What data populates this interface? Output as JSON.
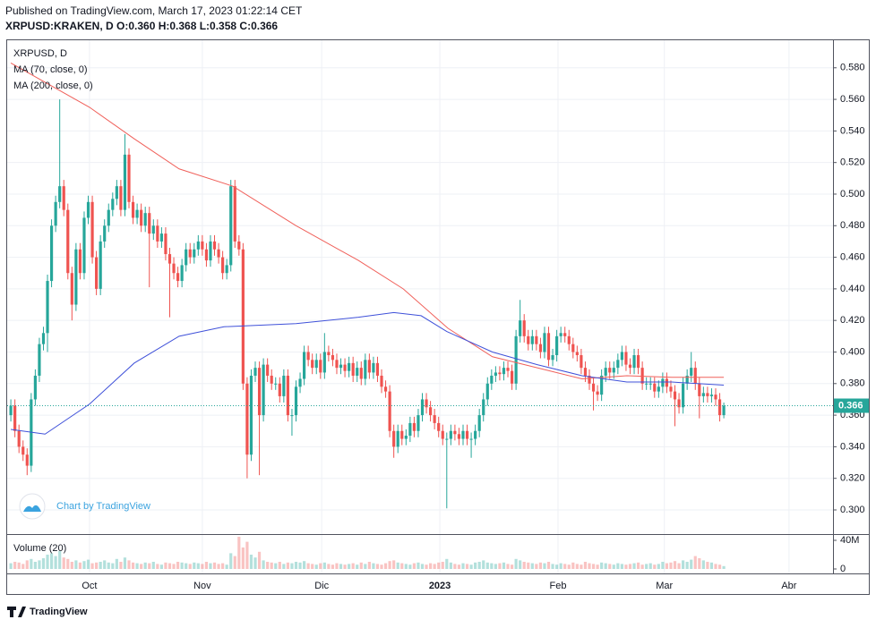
{
  "header": {
    "published": "Published on TradingView.com, March 17, 2023 01:22:14 CET",
    "symbol_line": "XRPUSD:KRAKEN, D O:0.360 H:0.368 L:0.358 C:0.366"
  },
  "chart_data": {
    "type": "candlestick",
    "legend_title": "XRPUSD, D",
    "up_color": "#26a69a",
    "down_color": "#ef5350",
    "grid": true,
    "xlim": [
      -0.9,
      201.8
    ],
    "xticks": [
      {
        "value": 19.3,
        "label": "Oct"
      },
      {
        "value": 47,
        "label": "Nov"
      },
      {
        "value": 76.3,
        "label": "Dic"
      },
      {
        "value": 105.3,
        "label": "2023"
      },
      {
        "value": 134.3,
        "label": "Feb"
      },
      {
        "value": 160.4,
        "label": "Mar"
      },
      {
        "value": 191,
        "label": "Abr"
      }
    ],
    "ylim": [
      0.2847,
      0.598
    ],
    "yticks": [
      {
        "value": 0.3,
        "label": "0.300"
      },
      {
        "value": 0.32,
        "label": "0.320"
      },
      {
        "value": 0.34,
        "label": "0.340"
      },
      {
        "value": 0.36,
        "label": "0.360"
      },
      {
        "value": 0.38,
        "label": "0.380"
      },
      {
        "value": 0.4,
        "label": "0.400"
      },
      {
        "value": 0.42,
        "label": "0.420"
      },
      {
        "value": 0.44,
        "label": "0.440"
      },
      {
        "value": 0.46,
        "label": "0.460"
      },
      {
        "value": 0.48,
        "label": "0.480"
      },
      {
        "value": 0.5,
        "label": "0.500"
      },
      {
        "value": 0.52,
        "label": "0.520"
      },
      {
        "value": 0.54,
        "label": "0.540"
      },
      {
        "value": 0.56,
        "label": "0.560"
      },
      {
        "value": 0.58,
        "label": "0.580"
      }
    ],
    "last_price": 0.366,
    "open": [
      0.36,
      0.366,
      0.35,
      0.34,
      0.335,
      0.328,
      0.37,
      0.385,
      0.405,
      0.412,
      0.445,
      0.48,
      0.495,
      0.505,
      0.49,
      0.45,
      0.43,
      0.465,
      0.45,
      0.485,
      0.495,
      0.46,
      0.44,
      0.47,
      0.48,
      0.49,
      0.497,
      0.505,
      0.49,
      0.525,
      0.495,
      0.485,
      0.49,
      0.48,
      0.488,
      0.475,
      0.48,
      0.47,
      0.475,
      0.462,
      0.456,
      0.45,
      0.445,
      0.455,
      0.465,
      0.46,
      0.465,
      0.47,
      0.465,
      0.458,
      0.47,
      0.465,
      0.46,
      0.45,
      0.455,
      0.505,
      0.47,
      0.465,
      0.38,
      0.335,
      0.385,
      0.39,
      0.36,
      0.392,
      0.385,
      0.38,
      0.38,
      0.372,
      0.385,
      0.36,
      0.36,
      0.378,
      0.383,
      0.4,
      0.395,
      0.39,
      0.395,
      0.387,
      0.4,
      0.398,
      0.395,
      0.39,
      0.392,
      0.388,
      0.393,
      0.385,
      0.39,
      0.383,
      0.395,
      0.387,
      0.393,
      0.385,
      0.378,
      0.375,
      0.35,
      0.34,
      0.35,
      0.345,
      0.347,
      0.355,
      0.35,
      0.36,
      0.37,
      0.365,
      0.36,
      0.355,
      0.35,
      0.345,
      0.345,
      0.35,
      0.348,
      0.345,
      0.35,
      0.345,
      0.345,
      0.35,
      0.36,
      0.37,
      0.38,
      0.385,
      0.387,
      0.386,
      0.39,
      0.388,
      0.38,
      0.41,
      0.42,
      0.41,
      0.405,
      0.41,
      0.405,
      0.4,
      0.412,
      0.395,
      0.398,
      0.41,
      0.412,
      0.41,
      0.405,
      0.4,
      0.398,
      0.39,
      0.385,
      0.38,
      0.375,
      0.373,
      0.385,
      0.39,
      0.387,
      0.39,
      0.395,
      0.4,
      0.392,
      0.39,
      0.398,
      0.39,
      0.38,
      0.38,
      0.38,
      0.375,
      0.378,
      0.383,
      0.378,
      0.375,
      0.37,
      0.365,
      0.38,
      0.385,
      0.39,
      0.38,
      0.372,
      0.374,
      0.372,
      0.373,
      0.37,
      0.36
    ],
    "high": [
      0.37,
      0.37,
      0.354,
      0.344,
      0.339,
      0.374,
      0.389,
      0.409,
      0.416,
      0.449,
      0.484,
      0.499,
      0.56,
      0.509,
      0.494,
      0.454,
      0.469,
      0.469,
      0.489,
      0.499,
      0.499,
      0.464,
      0.474,
      0.484,
      0.494,
      0.501,
      0.509,
      0.509,
      0.538,
      0.529,
      0.499,
      0.494,
      0.494,
      0.492,
      0.492,
      0.484,
      0.484,
      0.479,
      0.479,
      0.466,
      0.46,
      0.454,
      0.459,
      0.469,
      0.469,
      0.469,
      0.474,
      0.474,
      0.469,
      0.474,
      0.474,
      0.469,
      0.464,
      0.459,
      0.509,
      0.509,
      0.474,
      0.469,
      0.384,
      0.389,
      0.394,
      0.394,
      0.396,
      0.396,
      0.389,
      0.384,
      0.384,
      0.389,
      0.389,
      0.364,
      0.382,
      0.387,
      0.404,
      0.404,
      0.399,
      0.399,
      0.399,
      0.412,
      0.404,
      0.402,
      0.399,
      0.396,
      0.396,
      0.397,
      0.397,
      0.394,
      0.394,
      0.399,
      0.399,
      0.397,
      0.397,
      0.389,
      0.382,
      0.379,
      0.354,
      0.354,
      0.354,
      0.351,
      0.359,
      0.359,
      0.364,
      0.374,
      0.374,
      0.369,
      0.364,
      0.359,
      0.354,
      0.349,
      0.354,
      0.354,
      0.352,
      0.354,
      0.354,
      0.349,
      0.354,
      0.364,
      0.374,
      0.384,
      0.389,
      0.391,
      0.391,
      0.394,
      0.394,
      0.392,
      0.414,
      0.433,
      0.424,
      0.414,
      0.414,
      0.414,
      0.409,
      0.416,
      0.416,
      0.402,
      0.414,
      0.416,
      0.416,
      0.414,
      0.409,
      0.404,
      0.402,
      0.394,
      0.389,
      0.384,
      0.379,
      0.389,
      0.394,
      0.394,
      0.394,
      0.399,
      0.404,
      0.404,
      0.396,
      0.402,
      0.402,
      0.394,
      0.384,
      0.384,
      0.384,
      0.382,
      0.387,
      0.387,
      0.382,
      0.379,
      0.374,
      0.384,
      0.389,
      0.4,
      0.394,
      0.384,
      0.378,
      0.378,
      0.377,
      0.377,
      0.374,
      0.368
    ],
    "low": [
      0.356,
      0.346,
      0.336,
      0.331,
      0.322,
      0.324,
      0.366,
      0.381,
      0.401,
      0.4,
      0.441,
      0.476,
      0.491,
      0.486,
      0.446,
      0.42,
      0.426,
      0.446,
      0.446,
      0.481,
      0.456,
      0.436,
      0.436,
      0.466,
      0.476,
      0.486,
      0.493,
      0.486,
      0.486,
      0.491,
      0.481,
      0.481,
      0.476,
      0.476,
      0.441,
      0.471,
      0.466,
      0.466,
      0.458,
      0.422,
      0.446,
      0.441,
      0.441,
      0.451,
      0.456,
      0.456,
      0.461,
      0.461,
      0.454,
      0.454,
      0.461,
      0.456,
      0.446,
      0.446,
      0.451,
      0.466,
      0.461,
      0.376,
      0.32,
      0.331,
      0.381,
      0.322,
      0.356,
      0.381,
      0.376,
      0.376,
      0.368,
      0.368,
      0.356,
      0.347,
      0.356,
      0.374,
      0.379,
      0.391,
      0.386,
      0.386,
      0.383,
      0.383,
      0.394,
      0.391,
      0.386,
      0.386,
      0.384,
      0.384,
      0.381,
      0.381,
      0.379,
      0.379,
      0.383,
      0.383,
      0.381,
      0.374,
      0.371,
      0.346,
      0.333,
      0.336,
      0.341,
      0.341,
      0.343,
      0.346,
      0.346,
      0.356,
      0.361,
      0.356,
      0.351,
      0.346,
      0.341,
      0.301,
      0.341,
      0.344,
      0.341,
      0.341,
      0.341,
      0.333,
      0.341,
      0.346,
      0.356,
      0.366,
      0.376,
      0.381,
      0.382,
      0.382,
      0.384,
      0.376,
      0.376,
      0.406,
      0.406,
      0.401,
      0.401,
      0.401,
      0.396,
      0.396,
      0.391,
      0.391,
      0.394,
      0.406,
      0.406,
      0.401,
      0.396,
      0.394,
      0.386,
      0.381,
      0.376,
      0.363,
      0.369,
      0.369,
      0.381,
      0.383,
      0.383,
      0.386,
      0.391,
      0.388,
      0.386,
      0.386,
      0.386,
      0.376,
      0.376,
      0.376,
      0.371,
      0.371,
      0.374,
      0.374,
      0.371,
      0.353,
      0.361,
      0.361,
      0.376,
      0.381,
      0.376,
      0.358,
      0.368,
      0.368,
      0.368,
      0.366,
      0.356,
      0.358
    ],
    "close": [
      0.366,
      0.35,
      0.34,
      0.335,
      0.328,
      0.37,
      0.385,
      0.405,
      0.412,
      0.445,
      0.48,
      0.495,
      0.505,
      0.49,
      0.45,
      0.43,
      0.465,
      0.45,
      0.485,
      0.495,
      0.46,
      0.44,
      0.47,
      0.48,
      0.49,
      0.497,
      0.505,
      0.49,
      0.525,
      0.495,
      0.485,
      0.49,
      0.48,
      0.488,
      0.475,
      0.48,
      0.47,
      0.475,
      0.462,
      0.456,
      0.45,
      0.445,
      0.455,
      0.465,
      0.46,
      0.465,
      0.47,
      0.465,
      0.458,
      0.47,
      0.465,
      0.46,
      0.45,
      0.455,
      0.505,
      0.47,
      0.465,
      0.38,
      0.335,
      0.385,
      0.39,
      0.36,
      0.392,
      0.385,
      0.38,
      0.38,
      0.372,
      0.385,
      0.36,
      0.36,
      0.378,
      0.383,
      0.4,
      0.395,
      0.39,
      0.395,
      0.387,
      0.4,
      0.398,
      0.395,
      0.39,
      0.392,
      0.388,
      0.393,
      0.385,
      0.39,
      0.383,
      0.395,
      0.387,
      0.393,
      0.385,
      0.378,
      0.375,
      0.35,
      0.34,
      0.35,
      0.345,
      0.347,
      0.355,
      0.35,
      0.36,
      0.37,
      0.365,
      0.36,
      0.355,
      0.35,
      0.345,
      0.345,
      0.35,
      0.348,
      0.345,
      0.35,
      0.345,
      0.345,
      0.35,
      0.36,
      0.37,
      0.38,
      0.385,
      0.387,
      0.386,
      0.39,
      0.388,
      0.38,
      0.41,
      0.42,
      0.41,
      0.405,
      0.41,
      0.405,
      0.4,
      0.412,
      0.395,
      0.398,
      0.41,
      0.412,
      0.41,
      0.405,
      0.4,
      0.398,
      0.39,
      0.385,
      0.38,
      0.375,
      0.373,
      0.385,
      0.39,
      0.387,
      0.39,
      0.395,
      0.4,
      0.392,
      0.39,
      0.398,
      0.39,
      0.38,
      0.38,
      0.38,
      0.375,
      0.378,
      0.383,
      0.378,
      0.375,
      0.37,
      0.365,
      0.38,
      0.385,
      0.39,
      0.38,
      0.372,
      0.374,
      0.372,
      0.373,
      0.37,
      0.36,
      0.366
    ],
    "series": [
      {
        "name": "MA (70, close, 0)",
        "color": "#f0605a",
        "x": [
          0,
          19.3,
          30.3,
          41.3,
          54.5,
          70,
          85.3,
          96.3,
          107.3,
          118.2,
          129.2,
          140.2,
          151.2,
          162.2,
          175
        ],
        "values": [
          0.583,
          0.555,
          0.535,
          0.516,
          0.505,
          0.48,
          0.458,
          0.44,
          0.415,
          0.397,
          0.39,
          0.383,
          0.385,
          0.384,
          0.384
        ]
      },
      {
        "name": "MA (200, close, 0)",
        "color": "#3f51d9",
        "x": [
          0,
          8.4,
          19.3,
          30.3,
          41.3,
          52.3,
          70,
          85.3,
          94,
          100.7,
          107,
          118.2,
          129.2,
          140.2,
          151.2,
          162.2,
          175
        ],
        "values": [
          0.351,
          0.348,
          0.367,
          0.393,
          0.41,
          0.416,
          0.418,
          0.422,
          0.425,
          0.423,
          0.413,
          0.4,
          0.392,
          0.385,
          0.381,
          0.381,
          0.379
        ]
      }
    ]
  },
  "volume": {
    "title": "Volume (20)",
    "ylim": [
      0,
      48.75
    ],
    "yticks": [
      0,
      {
        "value": 40,
        "label": "40M"
      }
    ],
    "values": [
      8,
      10,
      9,
      7,
      12,
      14,
      10,
      12,
      15,
      20,
      22,
      18,
      25,
      16,
      14,
      10,
      12,
      9,
      11,
      13,
      8,
      9,
      10,
      12,
      9,
      8,
      14,
      10,
      16,
      12,
      9,
      8,
      7,
      9,
      8,
      10,
      7,
      6,
      9,
      8,
      7,
      10,
      9,
      8,
      7,
      9,
      8,
      7,
      10,
      8,
      9,
      7,
      8,
      6,
      22,
      18,
      45,
      30,
      38,
      20,
      16,
      24,
      12,
      10,
      9,
      8,
      10,
      7,
      9,
      8,
      10,
      9,
      11,
      8,
      7,
      6,
      8,
      9,
      7,
      6,
      8,
      7,
      6,
      7,
      8,
      6,
      9,
      7,
      10,
      8,
      7,
      6,
      8,
      11,
      12,
      9,
      8,
      7,
      6,
      8,
      9,
      7,
      6,
      8,
      7,
      9,
      10,
      14,
      9,
      7,
      6,
      8,
      7,
      6,
      9,
      10,
      12,
      9,
      8,
      7,
      8,
      9,
      7,
      6,
      14,
      12,
      10,
      9,
      8,
      7,
      9,
      8,
      10,
      7,
      6,
      8,
      7,
      6,
      9,
      7,
      6,
      10,
      8,
      7,
      6,
      9,
      8,
      7,
      6,
      8,
      7,
      6,
      7,
      8,
      9,
      6,
      7,
      8,
      6,
      7,
      10,
      8,
      9,
      11,
      8,
      12,
      10,
      13,
      18,
      15,
      12,
      10,
      9,
      7,
      6,
      4
    ]
  },
  "watermark": "Chart by TradingView",
  "footer": "TradingView"
}
